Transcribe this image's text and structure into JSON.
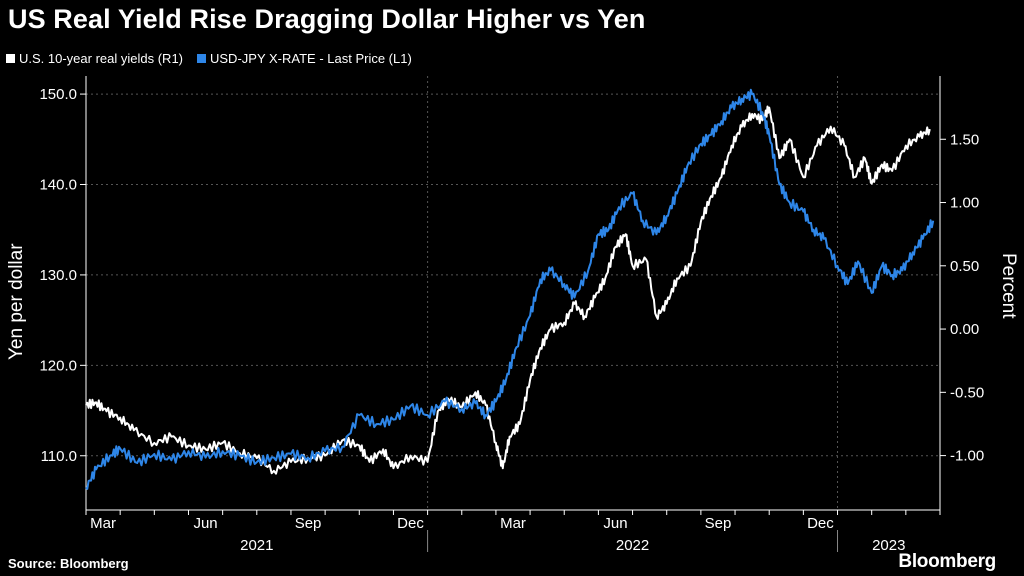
{
  "chart_data": {
    "type": "line",
    "title": "US Real Yield Rise Dragging Dollar Higher vs Yen",
    "y_left": {
      "label": "Yen per dollar",
      "range": [
        104,
        152
      ],
      "ticks": [
        "110.0",
        "120.0",
        "130.0",
        "140.0",
        "150.0"
      ],
      "tick_values": [
        110,
        120,
        130,
        140,
        150
      ]
    },
    "y_right": {
      "label": "Percent",
      "range": [
        -1.43,
        2.0
      ],
      "ticks": [
        "-1.00",
        "-0.50",
        "0.00",
        "0.50",
        "1.00",
        "1.50"
      ],
      "tick_values": [
        -1.0,
        -0.5,
        0.0,
        0.5,
        1.0,
        1.5
      ]
    },
    "x_range": [
      0,
      25
    ],
    "x_ticks": [
      {
        "label": "Mar",
        "at": 0.5
      },
      {
        "label": "Jun",
        "at": 3.5
      },
      {
        "label": "Sep",
        "at": 6.5
      },
      {
        "label": "Dec",
        "at": 9.5
      },
      {
        "label": "Mar",
        "at": 12.5
      },
      {
        "label": "Jun",
        "at": 15.5
      },
      {
        "label": "Sep",
        "at": 18.5
      },
      {
        "label": "Dec",
        "at": 21.5
      }
    ],
    "years": [
      {
        "label": "2021",
        "start": 0,
        "end": 10
      },
      {
        "label": "2022",
        "start": 10,
        "end": 22
      },
      {
        "label": "2023",
        "start": 22,
        "end": 25
      }
    ],
    "series": [
      {
        "name": "U.S. 10-year real yields (R1)",
        "axis": "right",
        "color": "#ffffff",
        "x": [
          0,
          0.3,
          0.6,
          1.0,
          1.4,
          2.0,
          2.5,
          3.0,
          3.5,
          4.0,
          4.5,
          5.0,
          5.5,
          6.0,
          6.5,
          7.0,
          7.5,
          8.0,
          8.3,
          8.7,
          9.0,
          9.5,
          10.0,
          10.3,
          10.6,
          11.0,
          11.4,
          11.7,
          12.0,
          12.2,
          12.4,
          12.7,
          13.0,
          13.3,
          13.6,
          14.0,
          14.3,
          14.6,
          14.9,
          15.2,
          15.5,
          15.8,
          16.0,
          16.4,
          16.7,
          17.0,
          17.3,
          17.7,
          18.0,
          18.3,
          18.6,
          18.9,
          19.2,
          19.5,
          19.8,
          20.0,
          20.3,
          20.6,
          21.0,
          21.4,
          21.8,
          22.2,
          22.5,
          22.8,
          23.0,
          23.3,
          23.6,
          24.0,
          24.4,
          24.7
        ],
        "values": [
          -0.6,
          -0.58,
          -0.65,
          -0.7,
          -0.8,
          -0.9,
          -0.85,
          -0.92,
          -0.95,
          -0.9,
          -0.98,
          -1.02,
          -1.12,
          -1.05,
          -1.02,
          -1.0,
          -0.88,
          -0.92,
          -1.05,
          -0.95,
          -1.1,
          -1.0,
          -1.05,
          -0.65,
          -0.55,
          -0.62,
          -0.5,
          -0.6,
          -0.9,
          -1.1,
          -0.85,
          -0.75,
          -0.4,
          -0.15,
          0.0,
          0.05,
          0.2,
          0.1,
          0.25,
          0.4,
          0.65,
          0.75,
          0.5,
          0.55,
          0.1,
          0.2,
          0.4,
          0.5,
          0.85,
          1.05,
          1.2,
          1.45,
          1.6,
          1.7,
          1.65,
          1.75,
          1.35,
          1.5,
          1.2,
          1.45,
          1.6,
          1.45,
          1.2,
          1.35,
          1.15,
          1.3,
          1.25,
          1.45,
          1.52,
          1.58
        ]
      },
      {
        "name": "USD-JPY X-RATE - Last Price (L1)",
        "axis": "left",
        "color": "#2e86e8",
        "x": [
          0,
          0.3,
          0.7,
          1.0,
          1.5,
          2.0,
          2.5,
          3.0,
          3.5,
          4.0,
          4.5,
          5.0,
          5.5,
          6.0,
          6.5,
          7.0,
          7.5,
          8.0,
          8.5,
          9.0,
          9.5,
          10.0,
          10.5,
          11.0,
          11.4,
          11.7,
          12.0,
          12.3,
          12.6,
          13.0,
          13.3,
          13.6,
          14.0,
          14.3,
          14.7,
          15.0,
          15.3,
          15.6,
          16.0,
          16.3,
          16.7,
          17.0,
          17.3,
          17.6,
          18.0,
          18.3,
          18.6,
          18.9,
          19.2,
          19.5,
          19.8,
          20.0,
          20.3,
          20.6,
          21.0,
          21.3,
          21.6,
          22.0,
          22.3,
          22.6,
          23.0,
          23.3,
          23.6,
          23.9,
          24.2,
          24.5,
          24.8
        ],
        "values": [
          106.5,
          108.5,
          110.0,
          110.8,
          109.2,
          110.2,
          109.5,
          110.5,
          109.8,
          110.5,
          110.0,
          109.3,
          109.8,
          110.2,
          109.8,
          110.5,
          111.0,
          114.5,
          113.5,
          114.0,
          115.5,
          114.5,
          116.0,
          115.2,
          115.8,
          114.5,
          116.0,
          118.5,
          122.0,
          125.5,
          129.5,
          130.5,
          129.0,
          127.5,
          130.5,
          134.5,
          135.0,
          137.5,
          139.0,
          136.0,
          134.5,
          136.5,
          139.0,
          142.0,
          144.5,
          145.5,
          147.0,
          148.5,
          149.5,
          150.0,
          148.0,
          145.5,
          140.0,
          138.0,
          137.0,
          135.0,
          134.0,
          131.0,
          129.0,
          131.5,
          128.0,
          131.0,
          130.0,
          130.5,
          132.5,
          134.0,
          136.0
        ]
      }
    ],
    "source": "Source: Bloomberg"
  },
  "brand": "Bloomberg",
  "colors": {
    "background": "#000000",
    "grid": "#555555",
    "yields": "#ffffff",
    "usdjpy": "#2e86e8"
  }
}
